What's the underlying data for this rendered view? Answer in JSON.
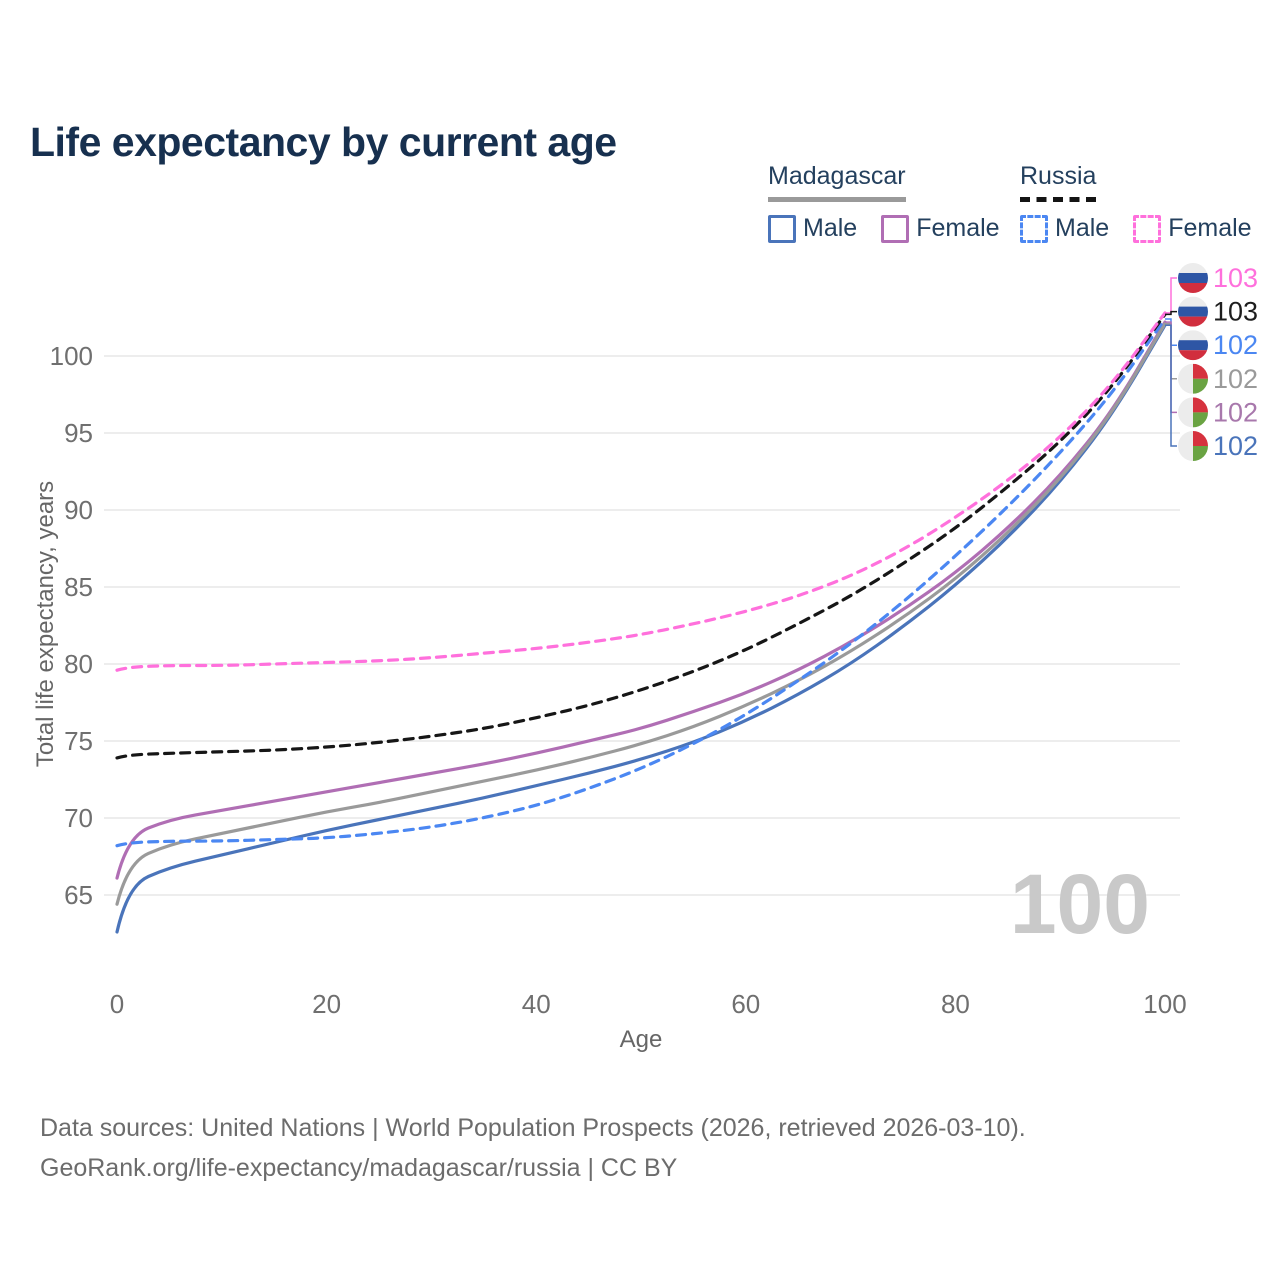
{
  "title": "Life expectancy by current age",
  "legend": {
    "groups": [
      {
        "label": "Madagascar",
        "line_style": "solid",
        "line_color": "#9a9a9a",
        "items": [
          {
            "label": "Male",
            "color": "#4a74ba",
            "dashed": false
          },
          {
            "label": "Female",
            "color": "#b06eb4",
            "dashed": false
          }
        ]
      },
      {
        "label": "Russia",
        "line_style": "dashed",
        "line_color": "#141414",
        "items": [
          {
            "label": "Male",
            "color": "#4b87f2",
            "dashed": true
          },
          {
            "label": "Female",
            "color": "#ff70dc",
            "dashed": true
          }
        ]
      }
    ]
  },
  "colors": {
    "grid": "#e7e7e7",
    "axis_text": "#6f6f6f",
    "title_text": "#17304f",
    "footer_text": "#6c6c6c",
    "watermark": "#c9c9c9",
    "flags": {
      "white": "#ececec",
      "russia_blue": "#2e56a5",
      "russia_red": "#d12e3e",
      "mada_red": "#d6323e",
      "mada_green": "#6aa342"
    }
  },
  "chart_data": {
    "type": "line",
    "title": "Life expectancy by current age",
    "xlabel": "Age",
    "ylabel": "Total life expectancy, years",
    "x_ticks": [
      0,
      20,
      40,
      60,
      80,
      100
    ],
    "y_ticks": [
      65,
      70,
      75,
      80,
      85,
      90,
      95,
      100
    ],
    "xlim": [
      0,
      100
    ],
    "ylim": [
      62,
      104
    ],
    "grid": "horizontal",
    "legend_position": "top-right",
    "watermark": "100",
    "ages": [
      0,
      1,
      5,
      10,
      15,
      20,
      25,
      30,
      35,
      40,
      45,
      50,
      55,
      60,
      65,
      70,
      75,
      80,
      85,
      90,
      95,
      100
    ],
    "series": [
      {
        "id": "russia-female",
        "name": "Russia Female",
        "country": "Russia",
        "sex": "Female",
        "color": "#ff70dc",
        "label_color": "#ff70dc",
        "dashed": true,
        "flag": "russia",
        "end_label": "103",
        "values": [
          79.6,
          79.8,
          79.9,
          79.9,
          80.0,
          80.1,
          80.2,
          80.4,
          80.7,
          81.0,
          81.4,
          81.9,
          82.6,
          83.4,
          84.4,
          85.7,
          87.4,
          89.5,
          91.9,
          94.7,
          98.2,
          102.8
        ]
      },
      {
        "id": "russia-both",
        "name": "Russia Both sexes",
        "country": "Russia",
        "sex": "Both",
        "color": "#161616",
        "label_color": "#1d1d1d",
        "dashed": true,
        "flag": "russia",
        "end_label": "103",
        "values": [
          73.9,
          74.1,
          74.2,
          74.3,
          74.4,
          74.6,
          74.9,
          75.3,
          75.8,
          76.5,
          77.3,
          78.3,
          79.5,
          80.9,
          82.6,
          84.4,
          86.5,
          88.8,
          91.5,
          94.4,
          98.0,
          102.7
        ]
      },
      {
        "id": "russia-male",
        "name": "Russia Male",
        "country": "Russia",
        "sex": "Male",
        "color": "#4b87f2",
        "label_color": "#4b87f2",
        "dashed": true,
        "flag": "russia",
        "end_label": "102",
        "values": [
          68.2,
          68.4,
          68.5,
          68.5,
          68.6,
          68.7,
          69.0,
          69.4,
          70.0,
          70.8,
          71.9,
          73.2,
          74.8,
          76.7,
          78.9,
          81.3,
          84.0,
          87.0,
          90.2,
          93.7,
          97.6,
          102.4
        ]
      },
      {
        "id": "madagascar-both",
        "name": "Madagascar Both sexes",
        "country": "Madagascar",
        "sex": "Both",
        "color": "#9a9a9a",
        "label_color": "#9a9a9a",
        "dashed": false,
        "flag": "madagascar",
        "end_label": "102",
        "values": [
          64.4,
          67.1,
          68.3,
          69.0,
          69.7,
          70.4,
          71.0,
          71.7,
          72.4,
          73.1,
          73.9,
          74.8,
          75.9,
          77.3,
          78.9,
          80.8,
          83.0,
          85.5,
          88.5,
          92.0,
          96.3,
          102.1
        ]
      },
      {
        "id": "madagascar-female",
        "name": "Madagascar Female",
        "country": "Madagascar",
        "sex": "Female",
        "color": "#b06eb4",
        "label_color": "#a878ac",
        "dashed": false,
        "flag": "madagascar",
        "end_label": "102",
        "values": [
          66.1,
          68.8,
          69.9,
          70.5,
          71.1,
          71.7,
          72.3,
          72.9,
          73.5,
          74.2,
          75.0,
          75.8,
          76.9,
          78.1,
          79.6,
          81.4,
          83.5,
          85.9,
          88.8,
          92.2,
          96.4,
          102.2
        ]
      },
      {
        "id": "madagascar-male",
        "name": "Madagascar Male",
        "country": "Madagascar",
        "sex": "Male",
        "color": "#4a74ba",
        "label_color": "#4a74ba",
        "dashed": false,
        "flag": "madagascar",
        "end_label": "102",
        "values": [
          62.6,
          65.6,
          66.8,
          67.6,
          68.4,
          69.2,
          69.9,
          70.6,
          71.3,
          72.1,
          72.9,
          73.8,
          74.9,
          76.3,
          78.0,
          80.0,
          82.4,
          85.1,
          88.2,
          91.8,
          96.2,
          102.0
        ]
      }
    ]
  },
  "footer": {
    "line1": "Data sources: United Nations | World Population Prospects (2026, retrieved 2026-03-10).",
    "line2": "GeoRank.org/life-expectancy/madagascar/russia | CC BY"
  }
}
